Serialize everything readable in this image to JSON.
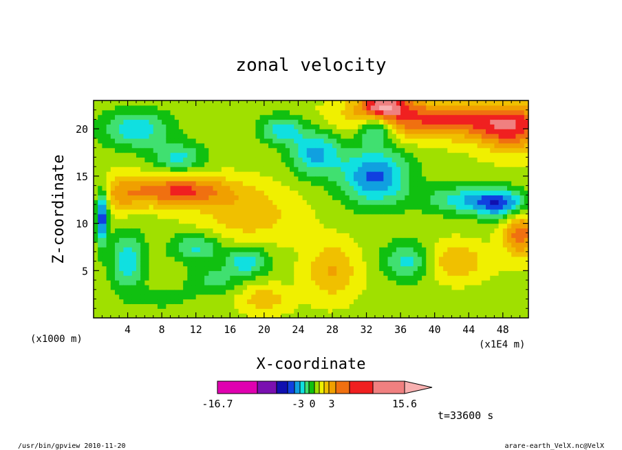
{
  "chart_data": {
    "type": "heatmap",
    "title": "zonal velocity",
    "xlabel": "X-coordinate",
    "ylabel": "Z-coordinate",
    "x_unit_note": "(x1E4 m)",
    "y_unit_note": "(x1000 m)",
    "x_ticks": [
      4,
      8,
      12,
      16,
      20,
      24,
      28,
      32,
      36,
      40,
      44,
      48
    ],
    "y_ticks": [
      5,
      10,
      15,
      20
    ],
    "xlim": [
      0,
      51
    ],
    "ylim": [
      0,
      23
    ],
    "colorbar": {
      "labels": [
        "-16.7",
        "-3",
        "0",
        "3",
        "15.6"
      ],
      "min": -16.7,
      "max": 15.6,
      "colors": [
        "#e000b0",
        "#7a10b0",
        "#1010b0",
        "#1040e0",
        "#10a0e0",
        "#10e0e0",
        "#40e070",
        "#10c010",
        "#a0e000",
        "#f0f000",
        "#f0c000",
        "#f0a000",
        "#f07010",
        "#f02020",
        "#f08080",
        "#f8b0b0"
      ]
    },
    "field": {
      "base": 0.8,
      "components": [
        {
          "x": 10,
          "z": 13.5,
          "amp": 9,
          "sx": 6,
          "sz": 1.6
        },
        {
          "x": 3,
          "z": 13,
          "amp": 4,
          "sx": 3,
          "sz": 2
        },
        {
          "x": 40,
          "z": 21,
          "amp": 9,
          "sx": 10,
          "sz": 2
        },
        {
          "x": 49,
          "z": 20,
          "amp": 8,
          "sx": 4,
          "sz": 2.5
        },
        {
          "x": 34,
          "z": 22.5,
          "amp": 10,
          "sx": 3,
          "sz": 1.2
        },
        {
          "x": 18,
          "z": 11,
          "amp": 4,
          "sx": 6,
          "sz": 3
        },
        {
          "x": 5,
          "z": 20,
          "amp": -7,
          "sx": 4,
          "sz": 2
        },
        {
          "x": 10,
          "z": 17,
          "amp": -6,
          "sx": 3,
          "sz": 1.5
        },
        {
          "x": 26,
          "z": 17.5,
          "amp": -8,
          "sx": 3,
          "sz": 2.5
        },
        {
          "x": 33,
          "z": 15,
          "amp": -10,
          "sx": 4,
          "sz": 3
        },
        {
          "x": 22,
          "z": 20,
          "amp": -7,
          "sx": 2.5,
          "sz": 1.5
        },
        {
          "x": 44,
          "z": 12.5,
          "amp": -7,
          "sx": 5,
          "sz": 1.5
        },
        {
          "x": 48,
          "z": 12,
          "amp": -8,
          "sx": 3,
          "sz": 1.5
        },
        {
          "x": 33,
          "z": 20,
          "amp": -8,
          "sx": 2,
          "sz": 1.5
        },
        {
          "x": 4,
          "z": 6,
          "amp": -7,
          "sx": 2,
          "sz": 3
        },
        {
          "x": 12,
          "z": 7.5,
          "amp": -6,
          "sx": 3,
          "sz": 1.5
        },
        {
          "x": 18,
          "z": 6,
          "amp": -7,
          "sx": 2.5,
          "sz": 1.5
        },
        {
          "x": 37,
          "z": 6,
          "amp": -7,
          "sx": 3,
          "sz": 2
        },
        {
          "x": 14,
          "z": 4,
          "amp": -4,
          "sx": 3,
          "sz": 1.5
        },
        {
          "x": 20,
          "z": 2,
          "amp": 4,
          "sx": 3,
          "sz": 1.5
        },
        {
          "x": 42,
          "z": 6,
          "amp": 5,
          "sx": 4,
          "sz": 2
        },
        {
          "x": 28,
          "z": 5,
          "amp": 5,
          "sx": 3,
          "sz": 3
        },
        {
          "x": 50,
          "z": 9,
          "amp": 8,
          "sx": 2,
          "sz": 2.5
        },
        {
          "x": 1,
          "z": 11,
          "amp": -12,
          "sx": 0.7,
          "sz": 3
        },
        {
          "x": 8,
          "z": 2,
          "amp": -2,
          "sx": 4,
          "sz": 1.2
        }
      ]
    }
  },
  "footer": {
    "time_label": "t=33600 s",
    "program_info": "/usr/bin/gpview 2010-11-20",
    "file_info": "arare-earth_VelX.nc@VelX"
  }
}
